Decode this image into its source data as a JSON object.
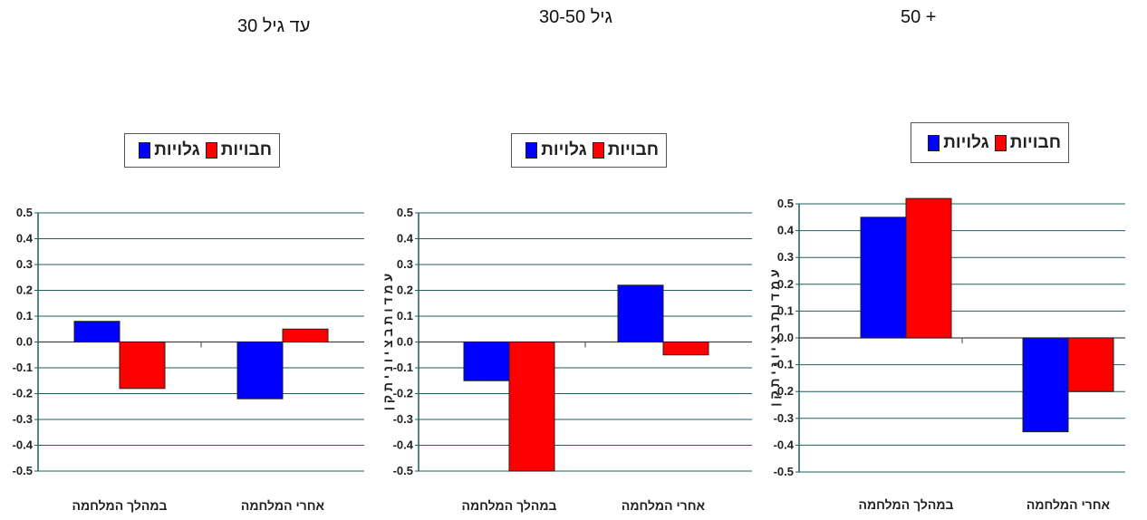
{
  "colors": {
    "series_1": "#0000ff",
    "series_2": "#ff0000",
    "axis": "#1f5f5f",
    "grid": "#1f5f5f"
  },
  "panels": [
    {
      "title": "עד גיל 30",
      "legend": [
        "חבויות",
        "גלויות"
      ],
      "ylabel": "",
      "chart_data": {
        "type": "bar",
        "categories": [
          "במהלך המלחמה",
          "אחרי המלחמה"
        ],
        "series": [
          {
            "name": "גלויות",
            "values": [
              0.08,
              -0.22
            ]
          },
          {
            "name": "חבויות",
            "values": [
              -0.18,
              0.05
            ]
          }
        ],
        "ylim": [
          -0.5,
          0.5
        ],
        "yticks": [
          "-0.5",
          "-0.4",
          "-0.3",
          "-0.2",
          "-0.1",
          "0.0",
          "0.1",
          "0.2",
          "0.3",
          "0.4",
          "0.5"
        ],
        "grid": true
      }
    },
    {
      "title": "גיל 30-50",
      "legend": [
        "חבויות",
        "גלויות"
      ],
      "ylabel": "ע מ ד ו ת ב צ י ו נ י ת ק ן",
      "chart_data": {
        "type": "bar",
        "categories": [
          "במהלך המלחמה",
          "אחרי המלחמה"
        ],
        "series": [
          {
            "name": "גלויות",
            "values": [
              -0.15,
              0.22
            ]
          },
          {
            "name": "חבויות",
            "values": [
              -0.5,
              -0.05
            ]
          }
        ],
        "ylim": [
          -0.5,
          0.5
        ],
        "yticks": [
          "-0.5",
          "-0.4",
          "-0.3",
          "-0.2",
          "-0.1",
          "0.0",
          "0.1",
          "0.2",
          "0.3",
          "0.4",
          "0.5"
        ],
        "grid": true
      }
    },
    {
      "title": "50 +",
      "legend": [
        "חבויות",
        "גלויות"
      ],
      "ylabel": "ע מ ד ו ת ב צ י ו נ י ת ק ן",
      "chart_data": {
        "type": "bar",
        "categories": [
          "במהלך המלחמה",
          "אחרי המלחמה"
        ],
        "series": [
          {
            "name": "גלויות",
            "values": [
              0.45,
              -0.35
            ]
          },
          {
            "name": "חבויות",
            "values": [
              0.52,
              -0.2
            ]
          }
        ],
        "ylim": [
          -0.5,
          0.5
        ],
        "yticks": [
          "-0.5",
          "-0.4",
          "-0.3",
          "-0.2",
          "-0.1",
          "0.0",
          "0.1",
          "0.2",
          "0.3",
          "0.4",
          "0.5"
        ],
        "grid": true
      }
    }
  ]
}
